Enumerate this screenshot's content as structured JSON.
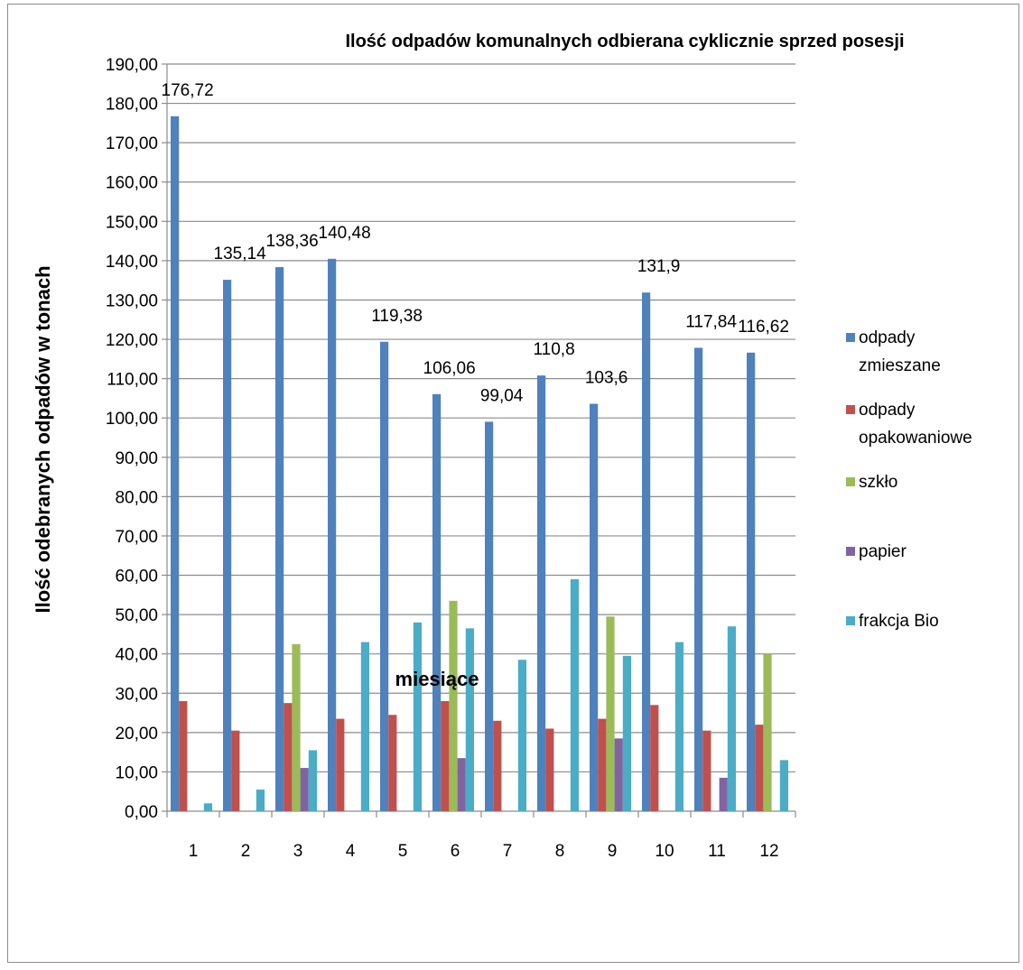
{
  "chart_data": {
    "type": "bar",
    "title": "Ilość odpadów komunalnych odbierana cyklicznie sprzed posesji",
    "xlabel": "miesiące",
    "ylabel": "Ilość odebranych odpadów w tonach",
    "ylim": [
      0,
      190
    ],
    "y_ticks": [
      "0,00",
      "10,00",
      "20,00",
      "30,00",
      "40,00",
      "50,00",
      "60,00",
      "70,00",
      "80,00",
      "90,00",
      "100,00",
      "110,00",
      "120,00",
      "130,00",
      "140,00",
      "150,00",
      "160,00",
      "170,00",
      "180,00",
      "190,00"
    ],
    "y_tick_values": [
      0,
      10,
      20,
      30,
      40,
      50,
      60,
      70,
      80,
      90,
      100,
      110,
      120,
      130,
      140,
      150,
      160,
      170,
      180,
      190
    ],
    "categories": [
      "1",
      "2",
      "3",
      "4",
      "5",
      "6",
      "7",
      "8",
      "9",
      "10",
      "11",
      "12"
    ],
    "grid": true,
    "legend_position": "right",
    "series": [
      {
        "name": "odpady zmieszane",
        "legend_lines": [
          "odpady",
          "zmieszane"
        ],
        "color": "#4f81bd",
        "values": [
          176.72,
          135.14,
          138.36,
          140.48,
          119.38,
          106.06,
          99.04,
          110.8,
          103.6,
          131.9,
          117.84,
          116.62
        ],
        "data_labels": [
          "176,72",
          "135,14",
          "138,36",
          "140,48",
          "119,38",
          "106,06",
          "99,04",
          "110,8",
          "103,6",
          "131,9",
          "117,84",
          "116,62"
        ]
      },
      {
        "name": "odpady opakowaniowe",
        "legend_lines": [
          "odpady",
          "opakowaniowe"
        ],
        "color": "#c0504d",
        "values": [
          28.0,
          20.5,
          27.5,
          23.5,
          24.5,
          28.0,
          23.0,
          21.0,
          23.5,
          27.0,
          20.5,
          22.0
        ]
      },
      {
        "name": "szkło",
        "legend_lines": [
          "szkło"
        ],
        "color": "#9bbb59",
        "values": [
          0,
          0,
          42.5,
          0,
          0,
          53.5,
          0,
          0,
          49.5,
          0,
          0,
          40.0
        ]
      },
      {
        "name": "papier",
        "legend_lines": [
          "papier"
        ],
        "color": "#8064a2",
        "values": [
          0,
          0,
          11.0,
          0,
          0,
          13.5,
          0,
          0,
          18.5,
          0,
          8.5,
          0
        ]
      },
      {
        "name": "frakcja Bio",
        "legend_lines": [
          "frakcja Bio"
        ],
        "color": "#4bacc6",
        "values": [
          2.0,
          5.5,
          15.5,
          43.0,
          48.0,
          46.5,
          38.5,
          59.0,
          39.5,
          43.0,
          47.0,
          13.0
        ]
      }
    ]
  }
}
